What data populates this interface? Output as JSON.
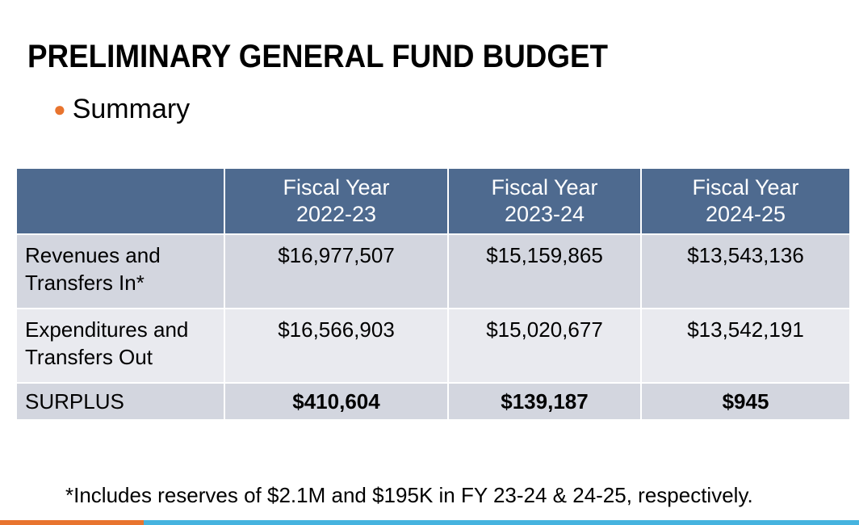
{
  "slide": {
    "title": "PRELIMINARY GENERAL FUND BUDGET",
    "bullet": "Summary",
    "accent_color": "#e8742e",
    "footnote": "*Includes reserves of $2.1M and $195K in FY 23-24 & 24-25, respectively."
  },
  "table": {
    "header_color": "#4e6a8f",
    "columns": [
      {
        "line1": "Fiscal Year",
        "line2": "2022-23"
      },
      {
        "line1": "Fiscal Year",
        "line2": "2023-24"
      },
      {
        "line1": "Fiscal Year",
        "line2": "2024-25"
      }
    ],
    "rows": [
      {
        "label_line1": "Revenues and",
        "label_line2": "Transfers In*",
        "values": [
          "$16,977,507",
          "$15,159,865",
          "$13,543,136"
        ]
      },
      {
        "label_line1": "Expenditures and",
        "label_line2": "Transfers Out",
        "values": [
          "$16,566,903",
          "$15,020,677",
          "$13,542,191"
        ]
      }
    ],
    "surplus": {
      "label": "SURPLUS",
      "values": [
        "$410,604",
        "$139,187",
        "$945"
      ]
    }
  },
  "footer_bar": {
    "left_color": "#e8742e",
    "right_color": "#46b3df"
  }
}
